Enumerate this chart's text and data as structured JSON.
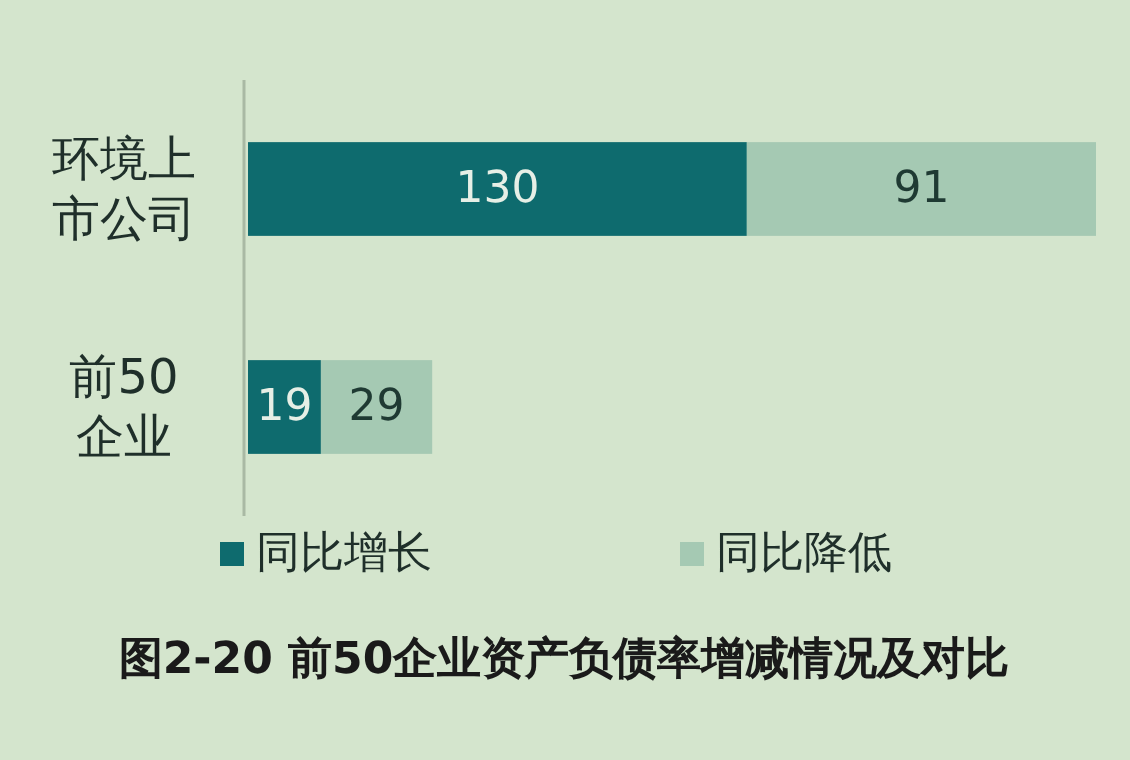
{
  "chart_data": {
    "type": "bar",
    "orientation": "horizontal",
    "stacked": true,
    "title": "图2-20 前50企业资产负债率增减情况及对比",
    "categories": [
      "环境上市公司",
      "前50企业"
    ],
    "series": [
      {
        "name": "同比增长",
        "color": "#0e6b6e",
        "values": [
          130,
          19
        ]
      },
      {
        "name": "同比降低",
        "color": "#a5c9b3",
        "values": [
          91,
          29
        ]
      }
    ],
    "data_labels": true,
    "legend": "bottom"
  }
}
